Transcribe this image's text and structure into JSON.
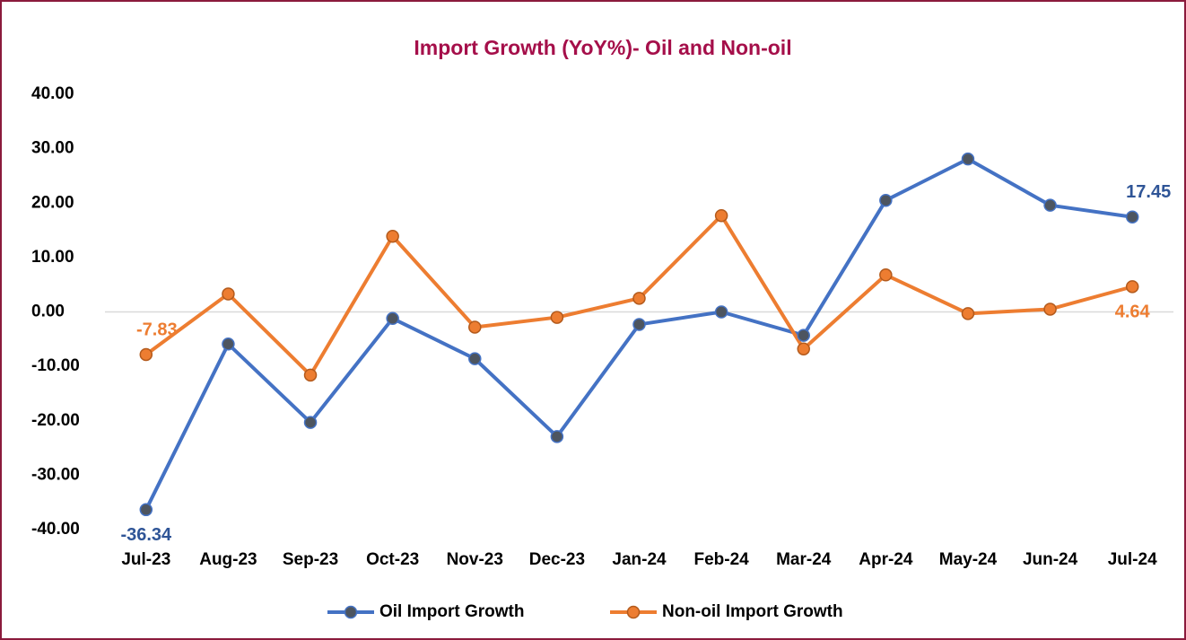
{
  "chart_data": {
    "type": "line",
    "title": "Import Growth (YoY%)- Oil and Non-oil",
    "categories": [
      "Jul-23",
      "Aug-23",
      "Sep-23",
      "Oct-23",
      "Nov-23",
      "Dec-23",
      "Jan-24",
      "Feb-24",
      "Mar-24",
      "Apr-24",
      "May-24",
      "Jun-24",
      "Jul-24"
    ],
    "series": [
      {
        "name": "Oil Import Growth",
        "color": "#4472c4",
        "values": [
          -36.34,
          -5.9,
          -20.3,
          -1.2,
          -8.6,
          -22.9,
          -2.3,
          0.0,
          -4.3,
          20.5,
          28.1,
          19.6,
          17.45
        ],
        "value_labels": [
          "-36.34",
          null,
          null,
          null,
          null,
          null,
          null,
          null,
          null,
          null,
          null,
          null,
          "17.45"
        ]
      },
      {
        "name": "Non-oil Import Growth",
        "color": "#ed7d31",
        "values": [
          -7.83,
          3.3,
          -11.6,
          13.9,
          -2.8,
          -1.0,
          2.5,
          17.7,
          -6.8,
          6.8,
          -0.3,
          0.5,
          4.64
        ],
        "value_labels": [
          "-7.83",
          null,
          null,
          null,
          null,
          null,
          null,
          null,
          null,
          null,
          null,
          null,
          "4.64"
        ]
      }
    ],
    "ylim": [
      -40,
      40
    ],
    "yticks": [
      {
        "value": 40,
        "label": "40.00"
      },
      {
        "value": 30,
        "label": "30.00"
      },
      {
        "value": 20,
        "label": "20.00"
      },
      {
        "value": 10,
        "label": "10.00"
      },
      {
        "value": 0,
        "label": "0.00"
      },
      {
        "value": -10,
        "label": "-10.00"
      },
      {
        "value": -20,
        "label": "-20.00"
      },
      {
        "value": -30,
        "label": "-30.00"
      },
      {
        "value": -40,
        "label": "-40.00"
      }
    ],
    "grid": false,
    "legend": "bottom"
  }
}
